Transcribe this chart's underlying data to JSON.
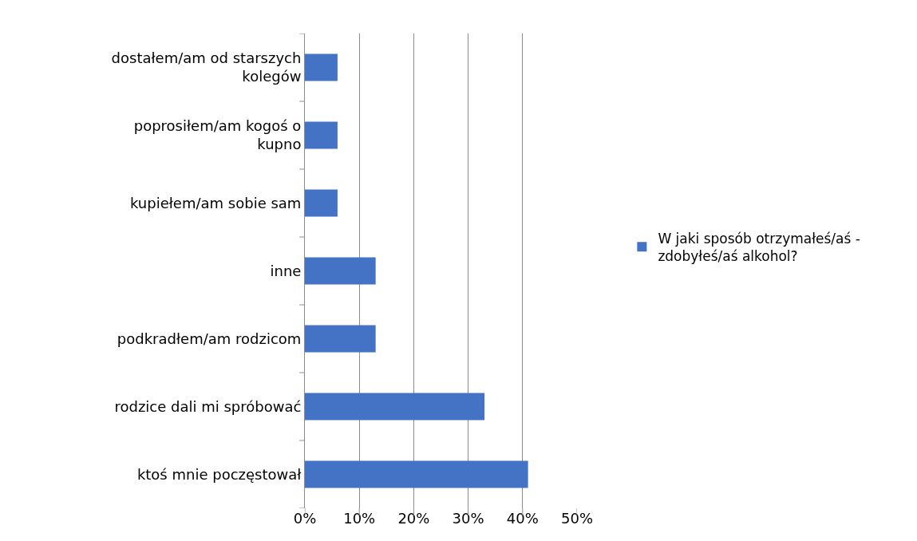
{
  "chart_data": {
    "type": "bar",
    "orientation": "horizontal",
    "categories": [
      "dostałem/am od starszych kolegów",
      "poprosiłem/am kogoś o kupno",
      "kupiełem/am sobie sam",
      "inne",
      "podkradłem/am rodzicom",
      "rodzice dali mi spróbować",
      "ktoś mnie poczęstował"
    ],
    "series": [
      {
        "name": "W jaki sposób otrzymałeś/aś - zdobyłeś/aś alkohol?",
        "color": "#4472c4",
        "values": [
          6,
          6,
          6,
          13,
          13,
          33,
          41
        ]
      }
    ],
    "xlim": [
      0,
      50
    ],
    "xticks": [
      {
        "value": 0,
        "label": "0%"
      },
      {
        "value": 10,
        "label": "10%"
      },
      {
        "value": 20,
        "label": "20%"
      },
      {
        "value": 30,
        "label": "30%"
      },
      {
        "value": 40,
        "label": "40%"
      },
      {
        "value": 50,
        "label": "50%"
      }
    ],
    "grid": "x",
    "legend": "right"
  }
}
